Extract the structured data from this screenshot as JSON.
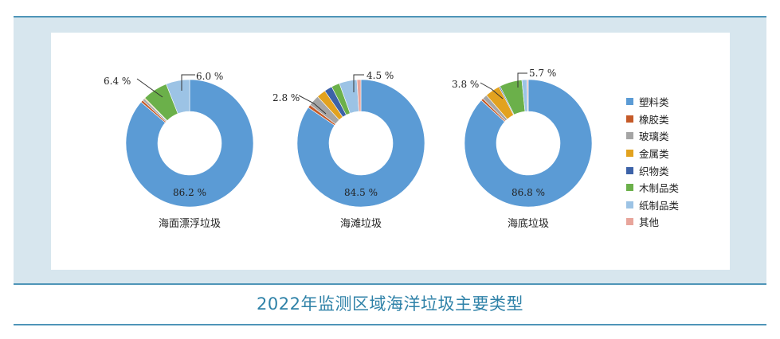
{
  "caption": "2022年监测区域海洋垃圾主要类型",
  "colors": {
    "塑料类": "#5b9bd5",
    "橡胶类": "#c55a28",
    "玻璃类": "#a5a5a5",
    "金属类": "#e2a21f",
    "织物类": "#3c62a8",
    "木制品类": "#6bb04a",
    "纸制品类": "#9cc3e5",
    "其他": "#e8a59b"
  },
  "legend": [
    "塑料类",
    "橡胶类",
    "玻璃类",
    "金属类",
    "织物类",
    "木制品类",
    "纸制品类",
    "其他"
  ],
  "chart_data": [
    {
      "type": "pie",
      "title": "海面漂浮垃圾",
      "categories": [
        "塑料类",
        "橡胶类",
        "玻璃类",
        "金属类",
        "织物类",
        "木制品类",
        "纸制品类",
        "其他"
      ],
      "values": [
        86.2,
        0.6,
        0.6,
        0.2,
        0.0,
        6.4,
        6.0,
        0.0
      ],
      "labels": [
        {
          "category": "塑料类",
          "text": "86.2 %"
        },
        {
          "category": "木制品类",
          "text": "6.4 %"
        },
        {
          "category": "纸制品类",
          "text": "6.0 %"
        }
      ]
    },
    {
      "type": "pie",
      "title": "海滩垃圾",
      "categories": [
        "塑料类",
        "橡胶类",
        "玻璃类",
        "金属类",
        "织物类",
        "木制品类",
        "纸制品类",
        "其他"
      ],
      "values": [
        84.5,
        0.8,
        2.8,
        2.3,
        2.0,
        2.1,
        4.5,
        1.0
      ],
      "labels": [
        {
          "category": "塑料类",
          "text": "84.5 %"
        },
        {
          "category": "玻璃类",
          "text": "2.8 %"
        },
        {
          "category": "纸制品类",
          "text": "4.5 %"
        }
      ]
    },
    {
      "type": "pie",
      "title": "海底垃圾",
      "categories": [
        "塑料类",
        "橡胶类",
        "玻璃类",
        "金属类",
        "织物类",
        "木制品类",
        "纸制品类",
        "其他"
      ],
      "values": [
        86.8,
        0.6,
        1.2,
        3.8,
        0.3,
        5.7,
        1.3,
        0.3
      ],
      "labels": [
        {
          "category": "塑料类",
          "text": "86.8 %"
        },
        {
          "category": "金属类",
          "text": "3.8 %"
        },
        {
          "category": "木制品类",
          "text": "5.7 %"
        }
      ]
    }
  ]
}
